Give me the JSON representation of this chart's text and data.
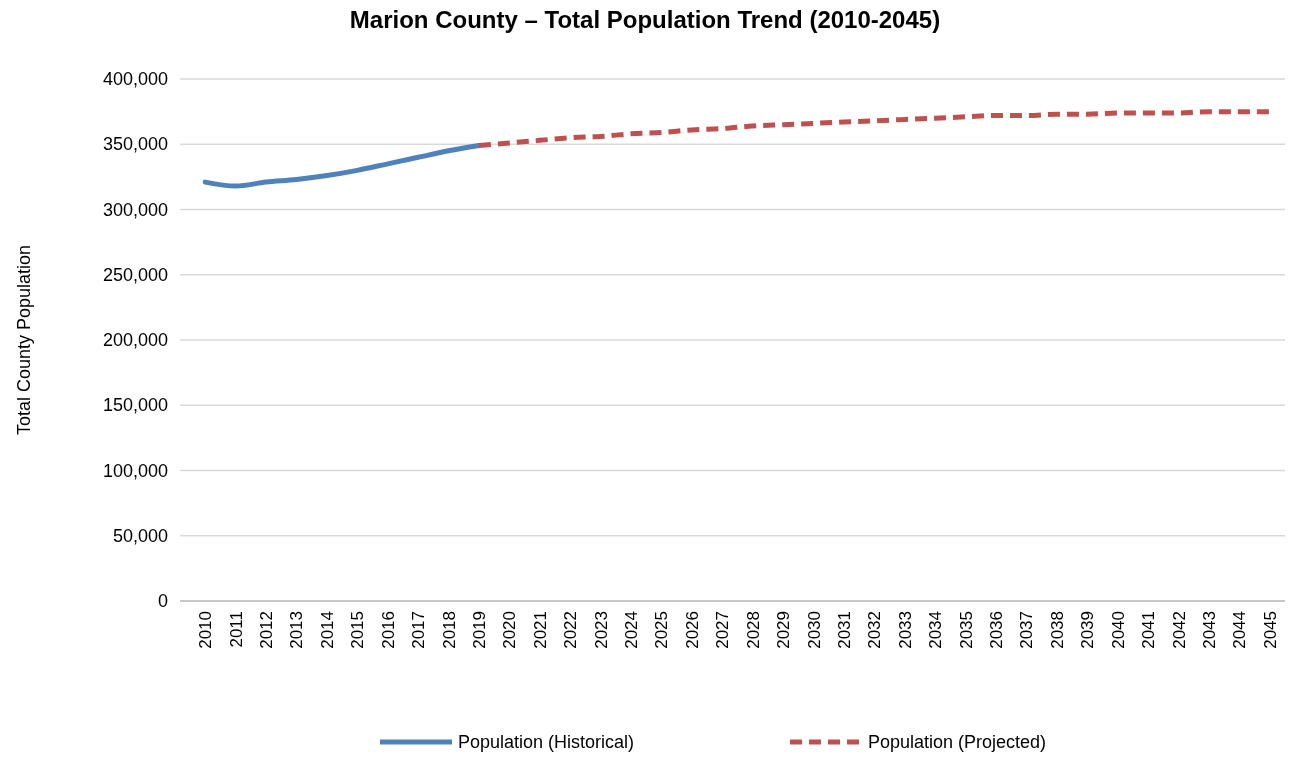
{
  "chart_data": {
    "type": "line",
    "title": "Marion County – Total Population Trend (2010-2045)",
    "ylabel": "Total County Population",
    "categories": [
      "2010",
      "2011",
      "2012",
      "2013",
      "2014",
      "2015",
      "2016",
      "2017",
      "2018",
      "2019",
      "2020",
      "2021",
      "2022",
      "2023",
      "2024",
      "2025",
      "2026",
      "2027",
      "2028",
      "2029",
      "2030",
      "2031",
      "2032",
      "2033",
      "2034",
      "2035",
      "2036",
      "2037",
      "2038",
      "2039",
      "2040",
      "2041",
      "2042",
      "2043",
      "2044",
      "2045"
    ],
    "series": [
      {
        "name": "Population (Historical)",
        "color": "#4f81bd",
        "line_style": "solid",
        "values": [
          321000,
          318000,
          321000,
          323000,
          326000,
          330000,
          335000,
          340000,
          345000,
          349000,
          null,
          null,
          null,
          null,
          null,
          null,
          null,
          null,
          null,
          null,
          null,
          null,
          null,
          null,
          null,
          null,
          null,
          null,
          null,
          null,
          null,
          null,
          null,
          null,
          null,
          null
        ]
      },
      {
        "name": "Population (Projected)",
        "color": "#c0504d",
        "line_style": "dashed",
        "values": [
          null,
          null,
          null,
          null,
          null,
          null,
          null,
          null,
          null,
          349000,
          351000,
          353000,
          355000,
          356000,
          358000,
          359000,
          361000,
          362000,
          364000,
          365000,
          366000,
          367000,
          368000,
          369000,
          370000,
          371000,
          372000,
          372000,
          373000,
          373000,
          374000,
          374000,
          374000,
          375000,
          375000,
          375000
        ]
      }
    ],
    "ylim": [
      0,
      400000
    ],
    "yticks": [
      {
        "value": 0,
        "label": "0"
      },
      {
        "value": 50000,
        "label": "50,000"
      },
      {
        "value": 100000,
        "label": "100,000"
      },
      {
        "value": 150000,
        "label": "150,000"
      },
      {
        "value": 200000,
        "label": "200,000"
      },
      {
        "value": 250000,
        "label": "250,000"
      },
      {
        "value": 300000,
        "label": "300,000"
      },
      {
        "value": 350000,
        "label": "350,000"
      },
      {
        "value": 400000,
        "label": "400,000"
      }
    ],
    "grid": "y",
    "legend": "bottom",
    "marker": "none"
  }
}
